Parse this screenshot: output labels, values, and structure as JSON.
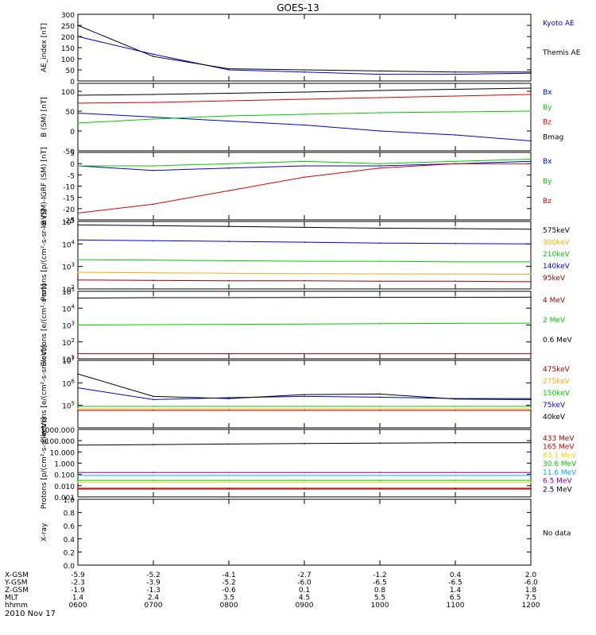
{
  "title": "GOES-13",
  "date": "2010 Nov 17",
  "colors": {
    "black": "#000000",
    "blue": "#0000dd",
    "green": "#00cc00",
    "red": "#dd0000",
    "orange": "#ffaa00",
    "cyan": "#00aaff",
    "yellow": "#dddd00",
    "purple": "#8800aa",
    "darkred": "#990000"
  },
  "bottom_axis": {
    "rows": [
      {
        "label": "X-GSM",
        "values": [
          "-5.9",
          "-5.2",
          "-4.1",
          "-2.7",
          "-1.2",
          "0.4",
          "2.0"
        ]
      },
      {
        "label": "Y-GSM",
        "values": [
          "-2.3",
          "-3.9",
          "-5.2",
          "-6.0",
          "-6.5",
          "-6.5",
          "-6.0"
        ]
      },
      {
        "label": "Z-GSM",
        "values": [
          "-1.9",
          "-1.3",
          "-0.6",
          "0.1",
          "0.8",
          "1.4",
          "1.8"
        ]
      },
      {
        "label": "MLT",
        "values": [
          "1.4",
          "2.4",
          "3.5",
          "4.5",
          "5.5",
          "6.5",
          "7.5"
        ]
      },
      {
        "label": "hhmm",
        "values": [
          "0600",
          "0700",
          "0800",
          "0900",
          "1000",
          "1100",
          "1200"
        ]
      }
    ]
  },
  "chart_data": [
    {
      "type": "line",
      "ylabel": "AE_index [nT]",
      "ylim": [
        0,
        300
      ],
      "yticks": [
        "300",
        "250",
        "200",
        "150",
        "100",
        "50",
        "0"
      ],
      "x": [
        "0600",
        "0700",
        "0800",
        "0900",
        "1000",
        "1100",
        "1200"
      ],
      "series": [
        {
          "name": "Kyoto AE",
          "color": "#0000dd",
          "values": [
            200,
            120,
            50,
            40,
            30,
            30,
            35
          ]
        },
        {
          "name": "Themis AE",
          "color": "#000000",
          "values": [
            250,
            110,
            55,
            50,
            45,
            40,
            40
          ]
        }
      ]
    },
    {
      "type": "line",
      "ylabel": "B (SM) [nT]",
      "ylim": [
        -50,
        120
      ],
      "yticks": [
        "100",
        "50",
        "0",
        "-50"
      ],
      "x": [
        "0600",
        "0700",
        "0800",
        "0900",
        "1000",
        "1100",
        "1200"
      ],
      "series": [
        {
          "name": "Bx",
          "color": "#0000dd",
          "values": [
            45,
            35,
            25,
            15,
            0,
            -10,
            -25
          ]
        },
        {
          "name": "By",
          "color": "#00cc00",
          "values": [
            20,
            30,
            38,
            42,
            46,
            48,
            50
          ]
        },
        {
          "name": "Bz",
          "color": "#dd0000",
          "values": [
            70,
            72,
            76,
            80,
            84,
            88,
            92
          ]
        },
        {
          "name": "Bmag",
          "color": "#000000",
          "values": [
            90,
            92,
            95,
            98,
            102,
            105,
            108
          ]
        }
      ]
    },
    {
      "type": "line",
      "ylabel": "B (SM)-IGRF (SM) [nT]",
      "ylim": [
        -25,
        5
      ],
      "yticks": [
        "5",
        "0",
        "-5",
        "-10",
        "-15",
        "-20",
        "-25"
      ],
      "x": [
        "0600",
        "0700",
        "0800",
        "0900",
        "1000",
        "1100",
        "1200"
      ],
      "series": [
        {
          "name": "Bx",
          "color": "#0000dd",
          "values": [
            -1,
            -3,
            -2,
            -1,
            -1,
            0,
            1
          ]
        },
        {
          "name": "By",
          "color": "#00cc00",
          "values": [
            -1,
            -1,
            0,
            1,
            0,
            1,
            2
          ]
        },
        {
          "name": "Bz",
          "color": "#dd0000",
          "values": [
            -22,
            -18,
            -12,
            -6,
            -2,
            0,
            0
          ]
        }
      ]
    },
    {
      "type": "line",
      "ylabel": "Protons [p/(cm²-s-sr-keV)]",
      "ylog": true,
      "ylim": [
        100,
        100000
      ],
      "ytick_exponents": [
        "5",
        "4",
        "3",
        "2"
      ],
      "x": [
        "0600",
        "0700",
        "0800",
        "0900",
        "1000",
        "1100",
        "1200"
      ],
      "series": [
        {
          "name": "575keV",
          "color": "#000000",
          "values": [
            70000,
            65000,
            60000,
            55000,
            50000,
            48000,
            45000
          ]
        },
        {
          "name": "300keV",
          "color": "#ffaa00",
          "values": [
            550,
            520,
            500,
            480,
            470,
            460,
            450
          ]
        },
        {
          "name": "210keV",
          "color": "#00cc00",
          "values": [
            2000,
            1900,
            1800,
            1700,
            1700,
            1600,
            1600
          ]
        },
        {
          "name": "140keV",
          "color": "#0000dd",
          "values": [
            15000,
            14000,
            13000,
            12000,
            11000,
            10500,
            10000
          ]
        },
        {
          "name": "95keV",
          "color": "#990000",
          "values": [
            250,
            240,
            230,
            230,
            220,
            220,
            210
          ]
        }
      ]
    },
    {
      "type": "line",
      "ylabel": "Electrons [e/(cm²-s-sr)]",
      "ylog": true,
      "ylim": [
        10,
        100000
      ],
      "ytick_exponents": [
        "5",
        "4",
        "3",
        "2",
        "1"
      ],
      "x": [
        "0600",
        "0700",
        "0800",
        "0900",
        "1000",
        "1100",
        "1200"
      ],
      "series": [
        {
          "name": "4 MeV",
          "color": "#990000",
          "values": [
            20,
            20,
            20,
            20,
            20,
            20,
            20
          ]
        },
        {
          "name": "2 MeV",
          "color": "#00cc00",
          "values": [
            1000,
            1050,
            1100,
            1150,
            1200,
            1250,
            1300
          ]
        },
        {
          "name": "0.6 MeV",
          "color": "#000000",
          "values": [
            40000,
            42000,
            42000,
            43000,
            44000,
            44000,
            45000
          ]
        }
      ]
    },
    {
      "type": "line",
      "ylabel": "Electrons [e/(cm²-s-sr-keV)]",
      "ylog": true,
      "ylim": [
        10000,
        10000000
      ],
      "ytick_exponents": [
        "7",
        "6",
        "5"
      ],
      "x": [
        "0600",
        "0700",
        "0800",
        "0900",
        "1000",
        "1100",
        "1200"
      ],
      "series": [
        {
          "name": "475keV",
          "color": "#990000",
          "values": [
            60000,
            60000,
            60000,
            60000,
            60000,
            60000,
            60000
          ]
        },
        {
          "name": "275keV",
          "color": "#ffaa00",
          "values": [
            70000,
            70000,
            70000,
            70000,
            70000,
            70000,
            70000
          ]
        },
        {
          "name": "150keV",
          "color": "#00cc00",
          "values": [
            90000,
            90000,
            90000,
            90000,
            90000,
            90000,
            90000
          ]
        },
        {
          "name": "75keV",
          "color": "#0000dd",
          "values": [
            600000,
            180000,
            220000,
            250000,
            230000,
            200000,
            200000
          ]
        },
        {
          "name": "40keV",
          "color": "#000000",
          "values": [
            2500000,
            250000,
            200000,
            300000,
            320000,
            190000,
            180000
          ]
        }
      ]
    },
    {
      "type": "line",
      "ylabel": "Protons [p/(cm²-s-sr-keV)]",
      "ylog": true,
      "ylim": [
        0.001,
        1000
      ],
      "yticks": [
        "1000.000",
        "100.000",
        "10.000",
        "1.000",
        "0.100",
        "0.010",
        "0.001"
      ],
      "x": [
        "0600",
        "0700",
        "0800",
        "0900",
        "1000",
        "1100",
        "1200"
      ],
      "series": [
        {
          "name": "433 MeV",
          "color": "#990000",
          "values": [
            0.005,
            0.005,
            0.005,
            0.005,
            0.005,
            0.005,
            0.005
          ]
        },
        {
          "name": "165 MeV",
          "color": "#dd0000",
          "values": [
            0.006,
            0.006,
            0.006,
            0.006,
            0.006,
            0.006,
            0.006
          ]
        },
        {
          "name": "63.1 MeV",
          "color": "#dddd00",
          "values": [
            0.02,
            0.02,
            0.02,
            0.02,
            0.02,
            0.02,
            0.02
          ]
        },
        {
          "name": "30.6 MeV",
          "color": "#00cc00",
          "values": [
            0.03,
            0.03,
            0.03,
            0.03,
            0.03,
            0.03,
            0.03
          ]
        },
        {
          "name": "11.6 MeV",
          "color": "#00aaff",
          "values": [
            0.08,
            0.08,
            0.08,
            0.08,
            0.08,
            0.08,
            0.08
          ]
        },
        {
          "name": "6.5 MeV",
          "color": "#8800aa",
          "values": [
            0.15,
            0.15,
            0.15,
            0.15,
            0.15,
            0.15,
            0.15
          ]
        },
        {
          "name": "2.5 MeV",
          "color": "#000000",
          "values": [
            40,
            45,
            50,
            55,
            60,
            65,
            65
          ]
        }
      ]
    },
    {
      "type": "line",
      "ylabel": "X-ray",
      "ylim": [
        0,
        1
      ],
      "yticks": [
        "1.0",
        "0.8",
        "0.6",
        "0.4",
        "0.2",
        "0.0"
      ],
      "x": [
        "0600",
        "0700",
        "0800",
        "0900",
        "1000",
        "1100",
        "1200"
      ],
      "series": [],
      "note": "No data"
    }
  ]
}
